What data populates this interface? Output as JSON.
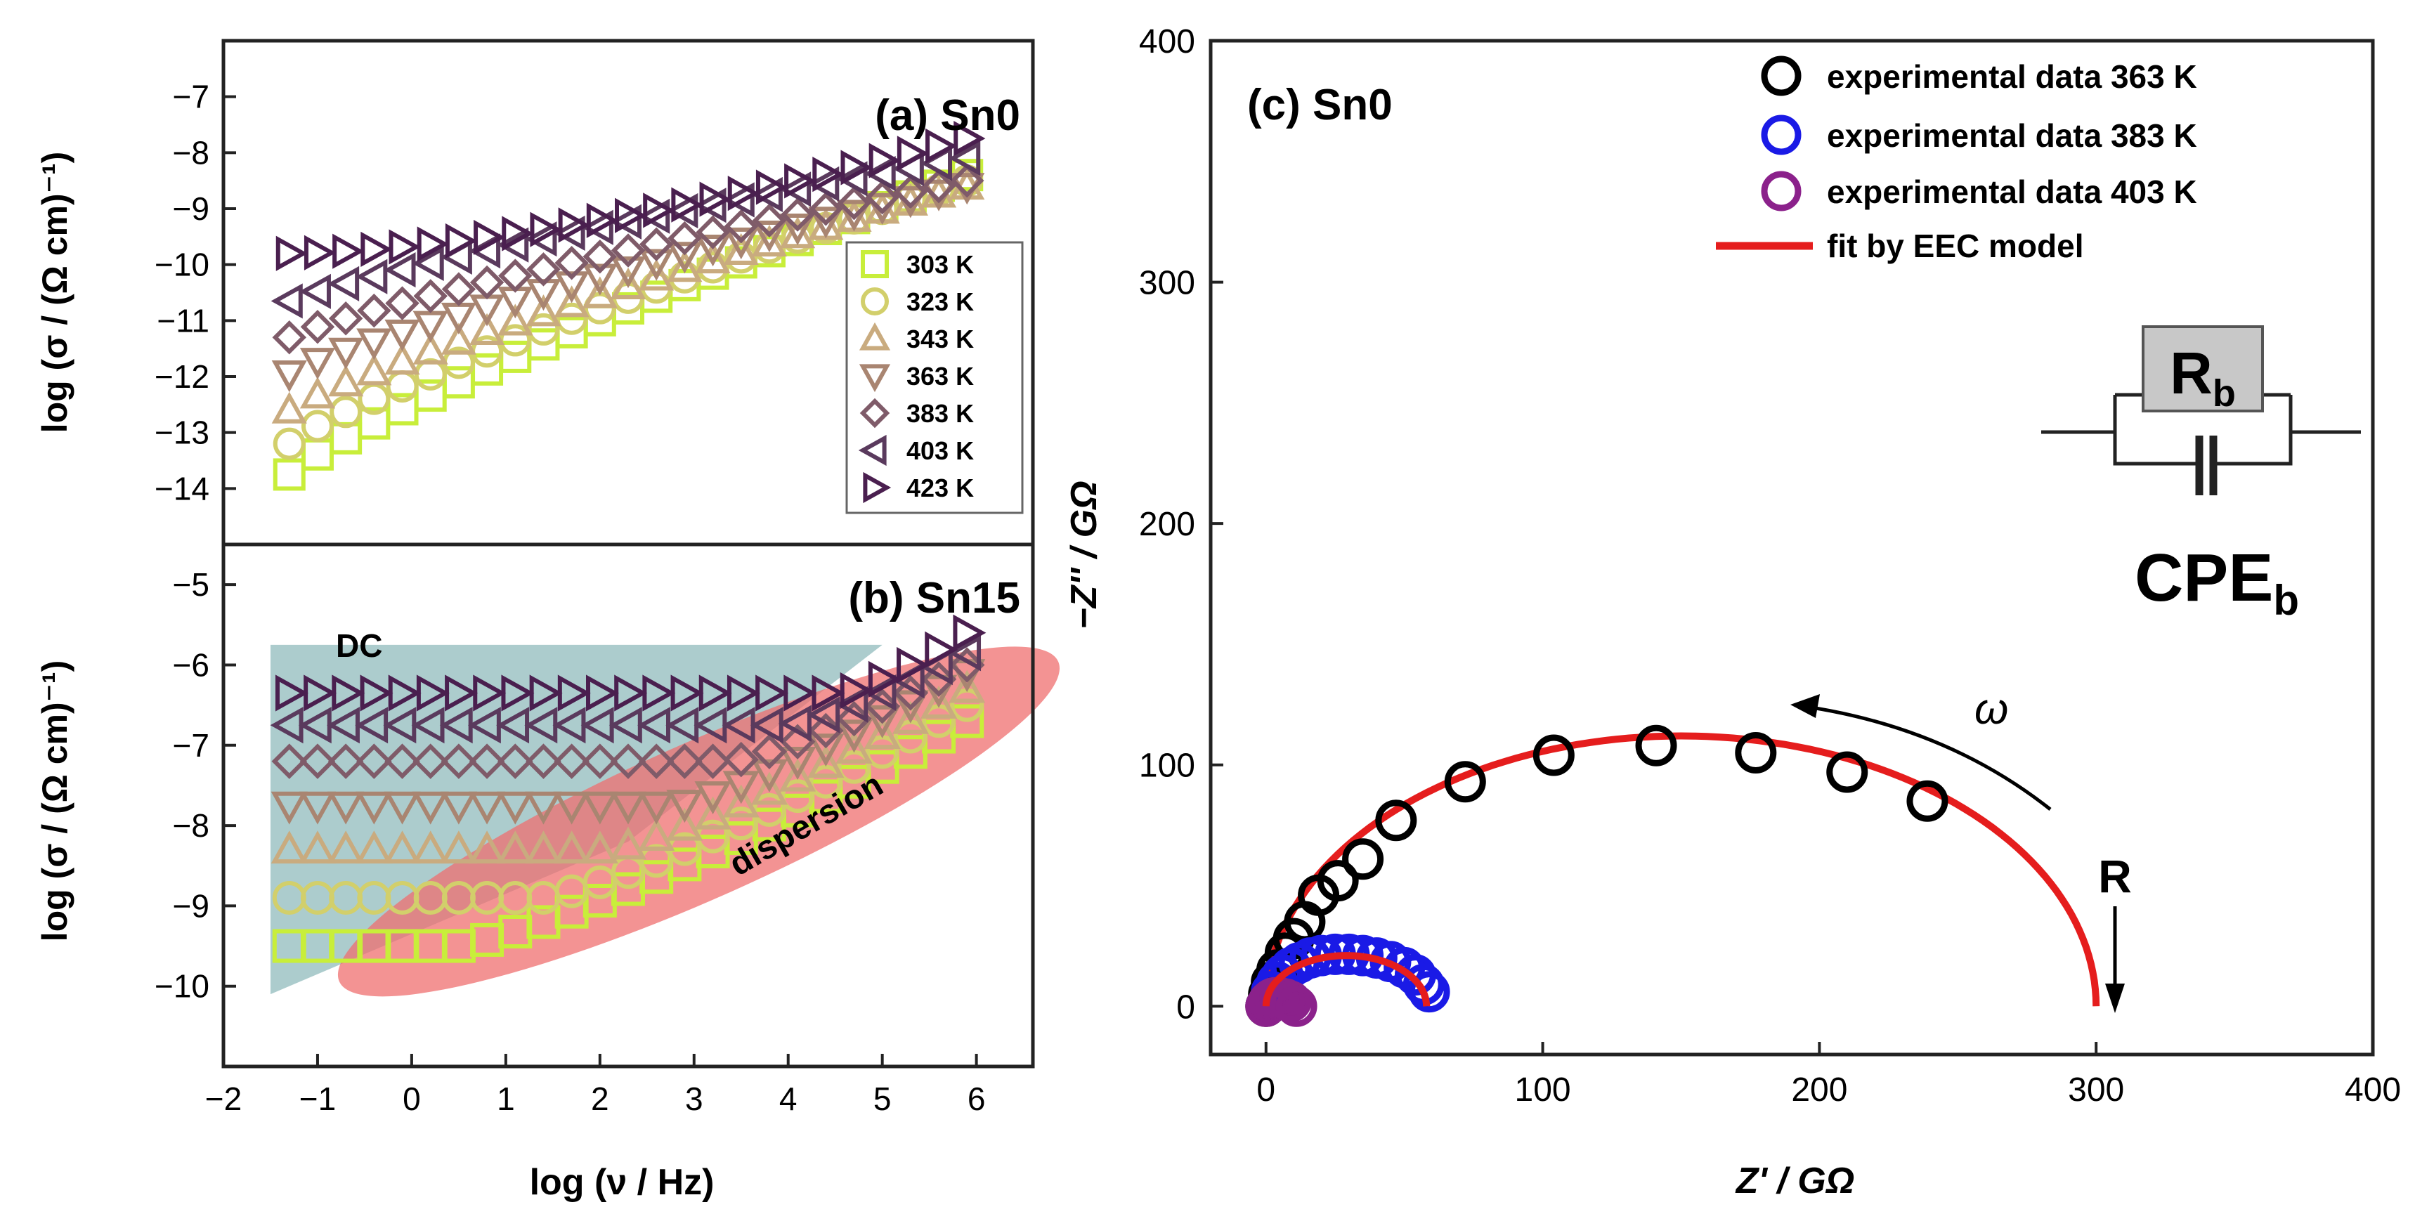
{
  "figure": {
    "colors": {
      "black": "#000000",
      "blue": "#1a1ae6",
      "purple": "#8b218b",
      "fit": "#e51d1d",
      "dc_region": "#9ec3c4",
      "dispersion_region": "#ef6f6f",
      "rb_box": "#c8c8c8"
    },
    "temperature_colors": [
      "#c8ee3a",
      "#d2cf6b",
      "#c9ab7f",
      "#a98571",
      "#7f5b69",
      "#5a3a5d",
      "#4a1f4f"
    ]
  },
  "chart_data": [
    {
      "id": "a",
      "type": "scatter",
      "title": "(a) Sn0",
      "xlabel": "",
      "ylabel": "log (σ / (Ω cm)⁻¹)",
      "xlim": [
        -2,
        6.6
      ],
      "ylim": [
        -15,
        -6
      ],
      "yticks": [
        -14,
        -13,
        -12,
        -11,
        -10,
        -9,
        -8,
        -7
      ],
      "legend": {
        "position": "right-middle",
        "entries": [
          {
            "label": "303 K",
            "marker": "square"
          },
          {
            "label": "323 K",
            "marker": "circle"
          },
          {
            "label": "343 K",
            "marker": "triangle-up"
          },
          {
            "label": "363 K",
            "marker": "triangle-down"
          },
          {
            "label": "383 K",
            "marker": "diamond"
          },
          {
            "label": "403 K",
            "marker": "triangle-left"
          },
          {
            "label": "423 K",
            "marker": "triangle-right"
          }
        ]
      },
      "x": [
        -1.3,
        -1.0,
        -0.7,
        -0.4,
        -0.1,
        0.2,
        0.5,
        0.8,
        1.1,
        1.4,
        1.7,
        2.0,
        2.3,
        2.6,
        2.9,
        3.2,
        3.5,
        3.8,
        4.1,
        4.4,
        4.7,
        5.0,
        5.3,
        5.6,
        5.9
      ],
      "series": [
        {
          "name": "303 K",
          "marker": "square",
          "start": -13.75,
          "end": -8.4,
          "x_end": 5.9,
          "shape": "power"
        },
        {
          "name": "323 K",
          "marker": "circle",
          "start": -13.2,
          "end": -8.5,
          "x_end": 5.9,
          "shape": "power"
        },
        {
          "name": "343 K",
          "marker": "triangle-up",
          "start": -12.6,
          "end": -8.6,
          "x_end": 5.9,
          "shape": "power"
        },
        {
          "name": "363 K",
          "marker": "triangle-down",
          "start": -11.95,
          "end": -8.6,
          "x_end": 5.9,
          "shape": "power"
        },
        {
          "name": "383 K",
          "marker": "diamond",
          "start": -11.3,
          "end": -8.5,
          "x_end": 5.9,
          "shape": "power"
        },
        {
          "name": "403 K",
          "marker": "triangle-left",
          "start": -10.65,
          "end": -8.1,
          "x_end": 5.9,
          "shape": "power"
        },
        {
          "name": "423 K",
          "marker": "triangle-right",
          "start": -9.8,
          "end": -7.7,
          "x_end": 6.0,
          "shape": "plateau"
        }
      ]
    },
    {
      "id": "b",
      "type": "scatter",
      "title": "(b) Sn15",
      "xlabel": "log (ν / Hz)",
      "ylabel": "log (σ / (Ω cm)⁻¹)",
      "xlim": [
        -2,
        6.6
      ],
      "ylim": [
        -11,
        -4.5
      ],
      "xticks": [
        -2,
        -1,
        0,
        1,
        2,
        3,
        4,
        5,
        6
      ],
      "yticks": [
        -10,
        -9,
        -8,
        -7,
        -6,
        -5
      ],
      "annotations": [
        "DC",
        "dispersion"
      ],
      "x": [
        -1.3,
        -1.0,
        -0.7,
        -0.4,
        -0.1,
        0.2,
        0.5,
        0.8,
        1.1,
        1.4,
        1.7,
        2.0,
        2.3,
        2.6,
        2.9,
        3.2,
        3.5,
        3.8,
        4.1,
        4.4,
        4.7,
        5.0,
        5.3,
        5.6,
        5.9
      ],
      "series": [
        {
          "name": "303 K",
          "marker": "square",
          "start": -9.5,
          "end": -6.7,
          "x_end": 5.9,
          "knee": 0.5
        },
        {
          "name": "323 K",
          "marker": "circle",
          "start": -8.9,
          "end": -6.5,
          "x_end": 5.9,
          "knee": 1.4
        },
        {
          "name": "343 K",
          "marker": "triangle-up",
          "start": -8.3,
          "end": -6.3,
          "x_end": 5.9,
          "knee": 2.1
        },
        {
          "name": "363 K",
          "marker": "triangle-down",
          "start": -7.75,
          "end": -6.1,
          "x_end": 5.9,
          "knee": 2.8
        },
        {
          "name": "383 K",
          "marker": "diamond",
          "start": -7.2,
          "end": -6.0,
          "x_end": 5.9,
          "knee": 3.4
        },
        {
          "name": "403 K",
          "marker": "triangle-left",
          "start": -6.75,
          "end": -5.85,
          "x_end": 5.9,
          "knee": 4.0
        },
        {
          "name": "423 K",
          "marker": "triangle-right",
          "start": -6.35,
          "end": -5.6,
          "x_end": 5.9,
          "knee": 4.6
        }
      ]
    },
    {
      "id": "c",
      "type": "scatter",
      "title": "(c) Sn0",
      "xlabel": "Z' / GΩ",
      "ylabel": "−Z'' / GΩ",
      "xlim": [
        -20,
        400
      ],
      "ylim": [
        -20,
        400
      ],
      "xticks": [
        0,
        100,
        200,
        300,
        400
      ],
      "yticks": [
        0,
        100,
        200,
        300,
        400
      ],
      "legend": {
        "position": "top-right",
        "entries": [
          {
            "label": "experimental data 363 K",
            "kind": "circle",
            "color": "#000000"
          },
          {
            "label": "experimental data 383 K",
            "kind": "circle",
            "color": "#1a1ae6"
          },
          {
            "label": "experimental data 403 K",
            "kind": "circle",
            "color": "#8b218b"
          },
          {
            "label": "fit by EEC model",
            "kind": "line",
            "color": "#e51d1d"
          }
        ]
      },
      "series": [
        {
          "name": "experimental data 363 K",
          "color": "#000000",
          "x": [
            0,
            1,
            2,
            4,
            7,
            10,
            14,
            19,
            26,
            35,
            47,
            72,
            104,
            141,
            177,
            210,
            239
          ],
          "y": [
            0,
            5,
            10,
            15,
            22,
            28,
            35,
            46,
            52,
            61,
            77,
            93,
            104,
            108,
            105,
            97,
            85
          ]
        },
        {
          "name": "experimental data 383 K",
          "color": "#1a1ae6",
          "x": [
            1,
            2,
            4,
            6,
            9,
            12,
            16,
            20,
            25,
            30,
            35,
            40,
            45,
            50,
            54,
            57,
            59
          ],
          "y": [
            2,
            6,
            10,
            13,
            16,
            18,
            20,
            21,
            21.5,
            21.5,
            21,
            20,
            18.5,
            16,
            13,
            9,
            6
          ]
        },
        {
          "name": "experimental data 403 K",
          "color": "#8b218b",
          "x": [
            0,
            1,
            2,
            3,
            5,
            7,
            9,
            11
          ],
          "y": [
            0,
            2,
            3,
            3.5,
            3.5,
            3,
            2,
            0
          ]
        },
        {
          "name": "fit by EEC model (363 K)",
          "color": "#e51d1d",
          "type": "arc",
          "r": 300,
          "peak": 112
        },
        {
          "name": "fit by EEC model (383 K)",
          "color": "#e51d1d",
          "type": "arc",
          "r": 58,
          "peak": 21
        }
      ],
      "annotations": {
        "omega": "ω",
        "r_marker": "R",
        "circuit_rb": "R",
        "circuit_rb_sub": "b",
        "circuit_cpe": "CPE",
        "circuit_cpe_sub": "b"
      }
    }
  ]
}
